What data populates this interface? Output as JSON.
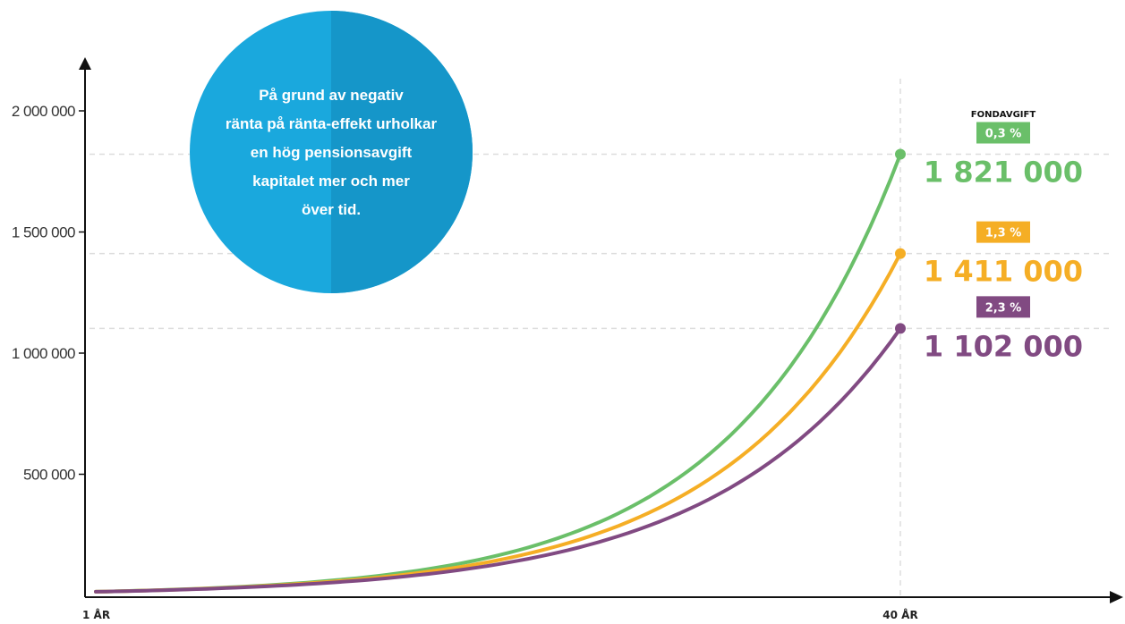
{
  "chart_data": {
    "type": "line",
    "x_labels": [
      "1 ÅR",
      "40 ÅR"
    ],
    "x": [
      1,
      40
    ],
    "y_ticks": [
      {
        "value": 500000,
        "label": "500 000"
      },
      {
        "value": 1000000,
        "label": "1 000 000"
      },
      {
        "value": 1500000,
        "label": "1 500 000"
      },
      {
        "value": 2000000,
        "label": "2 000 000"
      }
    ],
    "ylim": [
      0,
      2200000
    ],
    "legend_title": "FONDAVGIFT",
    "series": [
      {
        "name": "0,3 %",
        "color": "#6abf69",
        "start": 15000,
        "end": 1821000,
        "end_label": "1 821 000"
      },
      {
        "name": "1,3 %",
        "color": "#f5ae25",
        "start": 15000,
        "end": 1411000,
        "end_label": "1 411 000"
      },
      {
        "name": "2,3 %",
        "color": "#814a82",
        "start": 15000,
        "end": 1102000,
        "end_label": "1 102 000"
      }
    ],
    "annotation": {
      "lines": [
        "På grund av negativ",
        "ränta på ränta-effekt urholkar",
        "en hög pensionsavgift",
        "kapitalet mer och mer",
        "över tid."
      ],
      "color": "#1aa8dd"
    }
  }
}
